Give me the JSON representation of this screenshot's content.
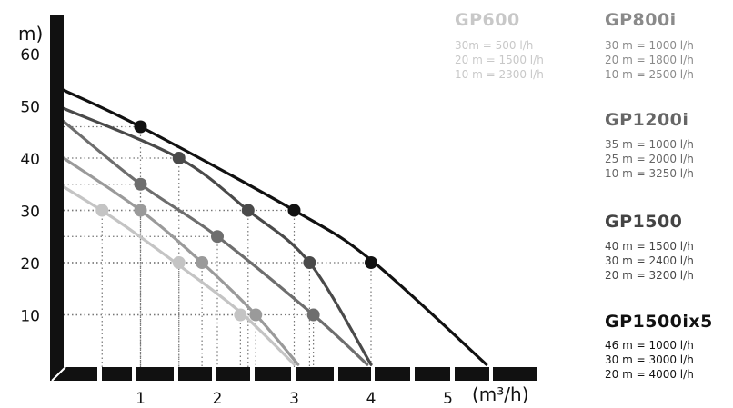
{
  "chart_data": {
    "type": "line",
    "xlabel": "(m³/h)",
    "ylabel": "m)",
    "xlim": [
      0,
      6.2
    ],
    "ylim": [
      0,
      68
    ],
    "x_ticks": [
      "1",
      "2",
      "3",
      "4",
      "5"
    ],
    "y_ticks": [
      "10",
      "20",
      "30",
      "40",
      "50",
      "60"
    ],
    "series": [
      {
        "name": "GP600",
        "color": "#c4c4c4",
        "curve": [
          [
            0,
            34.5
          ],
          [
            0.7,
            28
          ],
          [
            1.5,
            19.5
          ],
          [
            2.3,
            10.5
          ],
          [
            3.0,
            0.5
          ]
        ],
        "markers": [
          [
            0.5,
            30
          ],
          [
            1.5,
            20
          ],
          [
            2.3,
            10
          ]
        ],
        "points_text": [
          "30m = 500 l/h",
          "20 m = 1500 l/h",
          "10 m = 2300 l/h"
        ]
      },
      {
        "name": "GP800i",
        "color": "#9a9a9a",
        "curve": [
          [
            0,
            40
          ],
          [
            1.0,
            30
          ],
          [
            1.8,
            20
          ],
          [
            2.5,
            10
          ],
          [
            3.05,
            0.5
          ]
        ],
        "markers": [
          [
            1.0,
            30
          ],
          [
            1.8,
            20
          ],
          [
            2.5,
            10
          ]
        ],
        "points_text": [
          "30 m = 1000 l/h",
          "20 m = 1800 l/h",
          "10 m = 2500 l/h"
        ]
      },
      {
        "name": "GP1200i",
        "color": "#6e6e6e",
        "curve": [
          [
            0,
            47
          ],
          [
            1.0,
            35
          ],
          [
            2.0,
            25
          ],
          [
            3.25,
            10
          ],
          [
            3.95,
            0.5
          ]
        ],
        "markers": [
          [
            1.0,
            35
          ],
          [
            2.0,
            25
          ],
          [
            3.25,
            10
          ]
        ],
        "points_text": [
          "35 m = 1000 l/h",
          "25 m = 2000 l/h",
          "10 m = 3250 l/h"
        ]
      },
      {
        "name": "GP1500",
        "color": "#4a4a4a",
        "curve": [
          [
            0,
            49.5
          ],
          [
            1.5,
            40
          ],
          [
            2.4,
            30
          ],
          [
            3.2,
            20
          ],
          [
            4.0,
            0.5
          ]
        ],
        "markers": [
          [
            1.5,
            40
          ],
          [
            2.4,
            30
          ],
          [
            3.2,
            20
          ]
        ],
        "points_text": [
          "40 m = 1500 l/h",
          "30 m = 2400 l/h",
          "20 m = 3200 l/h"
        ]
      },
      {
        "name": "GP1500ix5",
        "color": "#111111",
        "curve": [
          [
            0,
            53
          ],
          [
            1.0,
            46
          ],
          [
            3.0,
            30
          ],
          [
            4.0,
            20.5
          ],
          [
            5.5,
            0.5
          ]
        ],
        "markers": [
          [
            1.0,
            46
          ],
          [
            3.0,
            30
          ],
          [
            4.0,
            20
          ]
        ],
        "points_text": [
          "46 m = 1000 l/h",
          "30 m = 3000 l/h",
          "20 m = 4000 l/h"
        ]
      }
    ]
  }
}
